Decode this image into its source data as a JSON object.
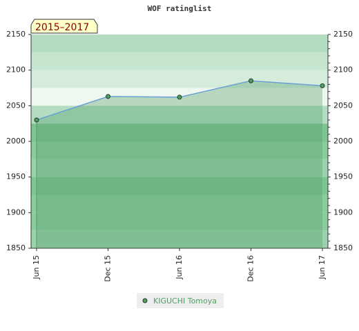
{
  "chart_data": {
    "type": "line",
    "title": "WOF ratinglist",
    "annotation": "2015–2017",
    "categories": [
      "Jun 15",
      "Dec 15",
      "Jun 16",
      "Dec 16",
      "Jun 17"
    ],
    "series": [
      {
        "name": "KIGUCHI Tomoya",
        "color": "#4f9d63",
        "line_color": "#6a9fd4",
        "values": [
          2030,
          2063,
          2062,
          2085,
          2078
        ]
      }
    ],
    "ylim": [
      1850,
      2150
    ],
    "yticks": [
      1850,
      1900,
      1950,
      2000,
      2050,
      2100,
      2150
    ]
  }
}
